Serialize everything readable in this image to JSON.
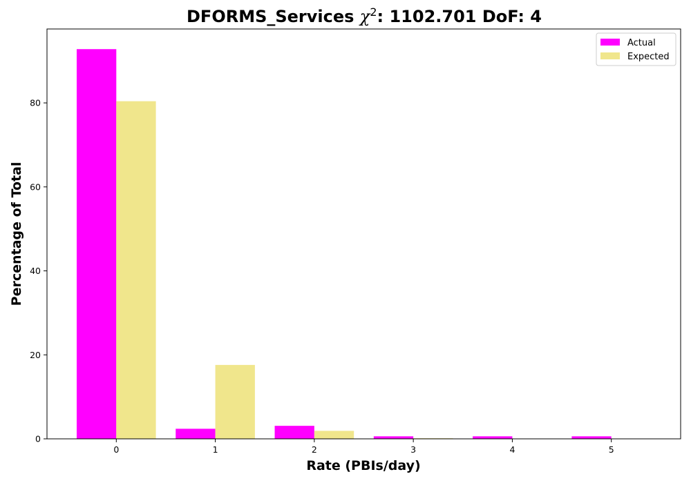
{
  "chart_data": {
    "type": "bar",
    "title": {
      "prefix": "DFORMS_Services ",
      "chi_symbol": "χ",
      "chi_power": "2",
      "suffix": ": 1102.701 DoF: 4"
    },
    "xlabel": "Rate (PBIs/day)",
    "ylabel": "Percentage of Total",
    "categories": [
      "0",
      "1",
      "2",
      "3",
      "4",
      "5"
    ],
    "x": [
      0,
      1,
      2,
      3,
      4,
      5
    ],
    "xlim": [
      -0.7,
      5.7
    ],
    "ylim": [
      0,
      97.6
    ],
    "yticks": [
      0,
      20,
      40,
      60,
      80
    ],
    "series": [
      {
        "name": "Actual",
        "color": "#ff00ff",
        "values": [
          92.8,
          2.4,
          3.1,
          0.6,
          0.6,
          0.6
        ]
      },
      {
        "name": "Expected",
        "color": "#f0e68c",
        "values": [
          80.4,
          17.6,
          1.9,
          0.14,
          0.01,
          0.0
        ]
      }
    ],
    "legend": "top-right",
    "grid": false
  }
}
